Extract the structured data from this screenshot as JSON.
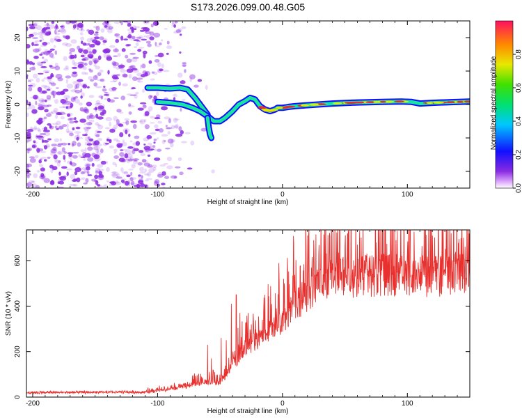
{
  "title": "S173.2026.099.00.48.G05",
  "colors": {
    "snr_line": "#e8312e",
    "axis": "#000000",
    "scatter": "#8b2be2",
    "track_low": "#1010ff",
    "track_mid": "#18e6a0",
    "track_high": "#e23030"
  },
  "chart_data": [
    {
      "id": "spectrogram",
      "type": "heatmap",
      "title": "",
      "xlabel": "Height of straight line (km)",
      "ylabel": "Frequency (Hz)",
      "xlim": [
        -205,
        150
      ],
      "ylim": [
        -25,
        25
      ],
      "xticks": [
        -200,
        -100,
        0,
        100
      ],
      "yticks": [
        -20,
        -10,
        0,
        10,
        20
      ],
      "grid": false,
      "colorbar": {
        "label": "Normalized spectral amplitude",
        "range": [
          0,
          1
        ],
        "ticks": [
          0.0,
          0.2,
          0.4,
          0.6,
          0.8
        ],
        "tick_labels": [
          "0.0",
          "0.2",
          "0.4",
          "0.6",
          "0.8"
        ],
        "colormap": "rainbow (white/magenta low → blue → cyan → green → yellow → red high)"
      },
      "noise_region_x": [
        -205,
        -85
      ],
      "tracks": [
        {
          "name": "upper-branch",
          "points": [
            [
              -108,
              5
            ],
            [
              -100,
              5
            ],
            [
              -90,
              4.8
            ],
            [
              -82,
              5
            ],
            [
              -76,
              4.5
            ],
            [
              -70,
              2
            ],
            [
              -64,
              -1
            ],
            [
              -60,
              -3
            ]
          ]
        },
        {
          "name": "main-branch",
          "points": [
            [
              -100,
              0.8
            ],
            [
              -90,
              0.5
            ],
            [
              -80,
              0
            ],
            [
              -72,
              -1
            ],
            [
              -66,
              -2
            ],
            [
              -60,
              -3.5
            ],
            [
              -55,
              -5
            ],
            [
              -50,
              -5
            ],
            [
              -46,
              -4
            ],
            [
              -40,
              -2
            ],
            [
              -35,
              0
            ],
            [
              -30,
              1
            ],
            [
              -26,
              2
            ],
            [
              -22,
              1.5
            ],
            [
              -18,
              -0.5
            ],
            [
              -14,
              -1.5
            ],
            [
              -10,
              -2
            ],
            [
              -6,
              -1.5
            ],
            [
              -4,
              -1
            ],
            [
              0,
              -1
            ],
            [
              5,
              -0.7
            ],
            [
              10,
              -0.5
            ],
            [
              20,
              -0.2
            ],
            [
              40,
              0.3
            ],
            [
              60,
              0.6
            ],
            [
              80,
              0.8
            ],
            [
              95,
              0.9
            ],
            [
              103,
              0.8
            ],
            [
              110,
              0.3
            ],
            [
              120,
              0.5
            ],
            [
              135,
              0.7
            ],
            [
              150,
              0.9
            ]
          ]
        },
        {
          "name": "downward-spike",
          "points": [
            [
              -60,
              -4
            ],
            [
              -59,
              -7
            ],
            [
              -58,
              -9
            ],
            [
              -57,
              -10
            ]
          ]
        }
      ]
    },
    {
      "id": "snr",
      "type": "line",
      "title": "",
      "xlabel": "Height of straight line (km)",
      "ylabel": "SNR (10 * v/v)",
      "xlim": [
        -205,
        150
      ],
      "ylim": [
        0,
        735
      ],
      "xticks": [
        -200,
        -100,
        0,
        100
      ],
      "yticks": [
        0,
        200,
        400,
        600
      ],
      "grid": false,
      "series": [
        {
          "name": "SNR",
          "envelope_x": [
            -205,
            -110,
            -95,
            -80,
            -65,
            -55,
            -50,
            -40,
            -30,
            -20,
            -10,
            0,
            10,
            20,
            30,
            50,
            80,
            110,
            150
          ],
          "envelope_y": [
            20,
            22,
            30,
            45,
            65,
            70,
            60,
            140,
            210,
            250,
            300,
            330,
            410,
            450,
            500,
            530,
            540,
            530,
            540
          ],
          "spikes": [
            [
              -60,
              230
            ],
            [
              -57,
              170
            ],
            [
              -49,
              260
            ],
            [
              -45,
              250
            ],
            [
              -41,
              410
            ],
            [
              -37,
              450
            ],
            [
              -34,
              370
            ],
            [
              -29,
              330
            ],
            [
              -25,
              320
            ],
            [
              -15,
              380
            ],
            [
              -5,
              390
            ],
            [
              10,
              460
            ],
            [
              25,
              690
            ],
            [
              50,
              660
            ],
            [
              75,
              680
            ],
            [
              90,
              735
            ],
            [
              100,
              640
            ],
            [
              120,
              710
            ],
            [
              135,
              720
            ],
            [
              145,
              700
            ]
          ]
        }
      ]
    }
  ]
}
